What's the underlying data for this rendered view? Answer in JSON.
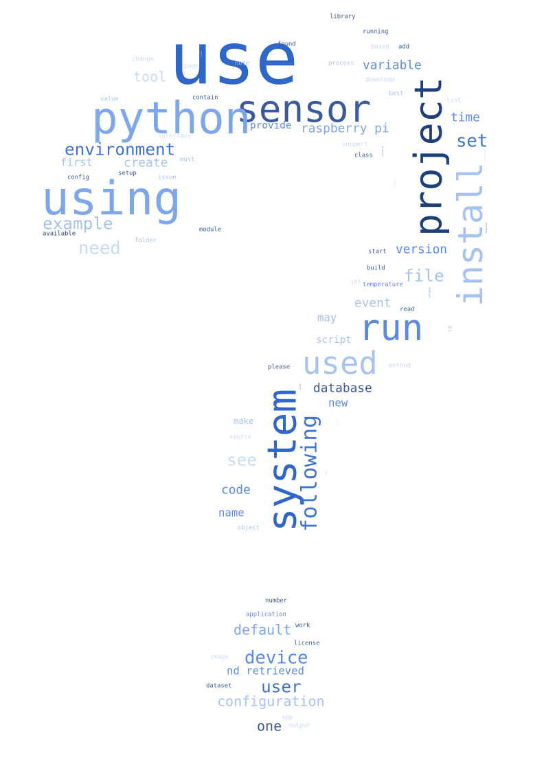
{
  "palette": {
    "p1": "#2f66c9",
    "p2": "#3e73d1",
    "p3": "#5a8ae0",
    "p4": "#7ea6ea",
    "p5": "#a7c3f1",
    "p6": "#c9daf6",
    "p7": "#3b5a9a",
    "p8": "#1f3f7a"
  },
  "words": {
    "use": "use",
    "sensor": "sensor",
    "python": "python",
    "project": "project",
    "using": "using",
    "install": "install",
    "run": "run",
    "system": "system",
    "used": "used",
    "environment": "environment",
    "example": "example",
    "need": "need",
    "tool": "tool",
    "variable": "variable",
    "raspberry_pi": "raspberry pi",
    "provide": "provide",
    "time": "time",
    "set": "set",
    "property": "property",
    "create": "create",
    "first": "first",
    "information": "information",
    "repository": "repository",
    "version": "version",
    "feature": "feature",
    "file": "file",
    "event": "event",
    "software": "software",
    "may": "may",
    "script": "script",
    "database": "database",
    "new": "new",
    "following": "following",
    "see": "see",
    "make": "make",
    "code": "code",
    "name": "name",
    "default": "default",
    "device": "device",
    "nd_retrieved": "nd retrieved",
    "user": "user",
    "configuration": "configuration",
    "one": "one",
    "library": "library",
    "running": "running",
    "found": "found",
    "add": "add",
    "result": "result",
    "based": "based",
    "change": "change",
    "page": "page",
    "note": "note",
    "process": "process",
    "download": "download",
    "value": "value",
    "contain": "contain",
    "best": "best",
    "interface": "interface",
    "list": "list",
    "support": "support",
    "class": "class",
    "must": "must",
    "config": "config",
    "setup": "setup",
    "issue": "issue",
    "module": "module",
    "available": "available",
    "folder": "folder",
    "start": "start",
    "build": "build",
    "temperature": "temperature",
    "read": "read",
    "please": "please",
    "server": "server",
    "source": "source",
    "analysis": "analysis",
    "installation": "installation",
    "model": "model",
    "object": "object",
    "number": "number",
    "application": "application",
    "work": "work",
    "license": "license",
    "image": "image",
    "dataset": "dataset",
    "app": "app",
    "output": "output",
    "method": "method",
    "int": "int",
    "ld": "ld"
  }
}
